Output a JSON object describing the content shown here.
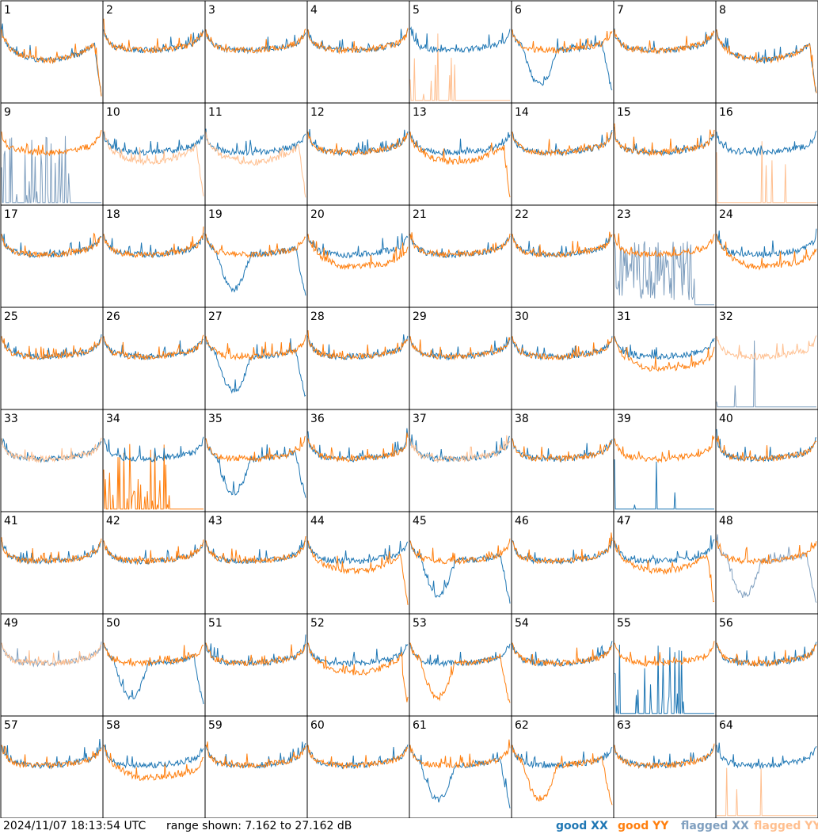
{
  "chart_data": {
    "type": "line",
    "description_of_layout": "8x8 grid of small spectra panels",
    "panel_count": 64,
    "panels": [
      {
        "id": "1",
        "profile": "edge",
        "xx": "good",
        "yy": "good",
        "xx_shape": "sag",
        "yy_shape": "sag"
      },
      {
        "id": "2",
        "profile": "bathtub",
        "xx": "good",
        "yy": "good"
      },
      {
        "id": "3",
        "profile": "bathtub",
        "xx": "good",
        "yy": "good"
      },
      {
        "id": "4",
        "profile": "bathtub",
        "xx": "good",
        "yy": "good"
      },
      {
        "id": "5",
        "profile": "bathtub",
        "xx": "good",
        "yy": "flagged",
        "yy_shape": "spike"
      },
      {
        "id": "6",
        "profile": "bathtub",
        "xx": "good",
        "yy": "good",
        "xx_shape": "dip"
      },
      {
        "id": "7",
        "profile": "bathtub",
        "xx": "good",
        "yy": "good"
      },
      {
        "id": "8",
        "profile": "edge",
        "xx": "good",
        "yy": "good",
        "xx_shape": "sag",
        "yy_shape": "sag"
      },
      {
        "id": "9",
        "profile": "bathtub",
        "xx": "flagged",
        "yy": "good",
        "xx_shape": "spikes"
      },
      {
        "id": "10",
        "profile": "bathtub",
        "xx": "good",
        "yy": "flagged",
        "yy_shape": "sag"
      },
      {
        "id": "11",
        "profile": "bathtub",
        "xx": "good",
        "yy": "flagged",
        "yy_shape": "sag"
      },
      {
        "id": "12",
        "profile": "bathtub",
        "xx": "good",
        "yy": "good"
      },
      {
        "id": "13",
        "profile": "bathtub",
        "xx": "good",
        "yy": "good",
        "yy_shape": "sag"
      },
      {
        "id": "14",
        "profile": "bathtub",
        "xx": "good",
        "yy": "good"
      },
      {
        "id": "15",
        "profile": "bathtub",
        "xx": "good",
        "yy": "good"
      },
      {
        "id": "16",
        "profile": "bathtub",
        "xx": "good",
        "yy": "flagged",
        "yy_shape": "spike"
      },
      {
        "id": "17",
        "profile": "bathtub",
        "xx": "good",
        "yy": "good"
      },
      {
        "id": "18",
        "profile": "bathtub",
        "xx": "good",
        "yy": "good"
      },
      {
        "id": "19",
        "profile": "bathtub",
        "xx": "good",
        "yy": "good",
        "xx_shape": "dip"
      },
      {
        "id": "20",
        "profile": "bathtub",
        "xx": "good",
        "yy": "good",
        "yy_shape": "lower"
      },
      {
        "id": "21",
        "profile": "bathtub",
        "xx": "good",
        "yy": "good"
      },
      {
        "id": "22",
        "profile": "bathtub",
        "xx": "good",
        "yy": "good"
      },
      {
        "id": "23",
        "profile": "bathtub",
        "xx": "flagged",
        "yy": "good",
        "xx_shape": "noise"
      },
      {
        "id": "24",
        "profile": "bathtub",
        "xx": "good",
        "yy": "good",
        "yy_shape": "lower"
      },
      {
        "id": "25",
        "profile": "bathtub",
        "xx": "good",
        "yy": "good"
      },
      {
        "id": "26",
        "profile": "bathtub",
        "xx": "good",
        "yy": "good"
      },
      {
        "id": "27",
        "profile": "bathtub",
        "xx": "good",
        "yy": "good",
        "xx_shape": "dip"
      },
      {
        "id": "28",
        "profile": "bathtub",
        "xx": "good",
        "yy": "good"
      },
      {
        "id": "29",
        "profile": "bathtub",
        "xx": "good",
        "yy": "good"
      },
      {
        "id": "30",
        "profile": "bathtub",
        "xx": "good",
        "yy": "good"
      },
      {
        "id": "31",
        "profile": "bathtub",
        "xx": "good",
        "yy": "good",
        "yy_shape": "lower"
      },
      {
        "id": "32",
        "profile": "bathtub",
        "xx": "flagged",
        "yy": "flagged",
        "xx_shape": "spike"
      },
      {
        "id": "33",
        "profile": "bathtub",
        "xx": "good",
        "yy": "flagged"
      },
      {
        "id": "34",
        "profile": "bathtub",
        "xx": "good",
        "yy": "good",
        "yy_shape": "spikes"
      },
      {
        "id": "35",
        "profile": "bathtub",
        "xx": "good",
        "yy": "good",
        "xx_shape": "dip"
      },
      {
        "id": "36",
        "profile": "bathtub",
        "xx": "good",
        "yy": "good"
      },
      {
        "id": "37",
        "profile": "bathtub",
        "xx": "good",
        "yy": "flagged"
      },
      {
        "id": "38",
        "profile": "bathtub",
        "xx": "good",
        "yy": "good"
      },
      {
        "id": "39",
        "profile": "bathtub",
        "xx": "good",
        "yy": "good",
        "xx_shape": "spike"
      },
      {
        "id": "40",
        "profile": "bathtub",
        "xx": "good",
        "yy": "good"
      },
      {
        "id": "41",
        "profile": "bathtub",
        "xx": "good",
        "yy": "good"
      },
      {
        "id": "42",
        "profile": "bathtub",
        "xx": "good",
        "yy": "good"
      },
      {
        "id": "43",
        "profile": "bathtub",
        "xx": "good",
        "yy": "good"
      },
      {
        "id": "44",
        "profile": "bathtub",
        "xx": "good",
        "yy": "good",
        "yy_shape": "sag"
      },
      {
        "id": "45",
        "profile": "bathtub",
        "xx": "good",
        "yy": "good",
        "xx_shape": "dip"
      },
      {
        "id": "46",
        "profile": "bathtub",
        "xx": "good",
        "yy": "good"
      },
      {
        "id": "47",
        "profile": "bathtub",
        "xx": "good",
        "yy": "good",
        "yy_shape": "sag"
      },
      {
        "id": "48",
        "profile": "bathtub",
        "xx": "flagged",
        "yy": "good",
        "xx_shape": "dip"
      },
      {
        "id": "49",
        "profile": "bathtub",
        "xx": "flagged",
        "yy": "flagged"
      },
      {
        "id": "50",
        "profile": "bathtub",
        "xx": "good",
        "yy": "good",
        "xx_shape": "dip"
      },
      {
        "id": "51",
        "profile": "bathtub",
        "xx": "good",
        "yy": "good"
      },
      {
        "id": "52",
        "profile": "bathtub",
        "xx": "good",
        "yy": "good",
        "yy_shape": "sag"
      },
      {
        "id": "53",
        "profile": "bathtub",
        "xx": "good",
        "yy": "good",
        "yy_shape": "dip"
      },
      {
        "id": "54",
        "profile": "bathtub",
        "xx": "good",
        "yy": "good"
      },
      {
        "id": "55",
        "profile": "bathtub",
        "xx": "good",
        "yy": "good",
        "xx_shape": "spikes"
      },
      {
        "id": "56",
        "profile": "bathtub",
        "xx": "good",
        "yy": "good"
      },
      {
        "id": "57",
        "profile": "bathtub",
        "xx": "good",
        "yy": "good"
      },
      {
        "id": "58",
        "profile": "bathtub",
        "xx": "good",
        "yy": "good",
        "yy_shape": "lower"
      },
      {
        "id": "59",
        "profile": "bathtub",
        "xx": "good",
        "yy": "good"
      },
      {
        "id": "60",
        "profile": "bathtub",
        "xx": "good",
        "yy": "good"
      },
      {
        "id": "61",
        "profile": "bathtub",
        "xx": "good",
        "yy": "good",
        "xx_shape": "dip"
      },
      {
        "id": "62",
        "profile": "bathtub",
        "xx": "good",
        "yy": "good",
        "yy_shape": "dip"
      },
      {
        "id": "63",
        "profile": "bathtub",
        "xx": "good",
        "yy": "good"
      },
      {
        "id": "64",
        "profile": "bathtub",
        "xx": "good",
        "yy": "flagged",
        "yy_shape": "spike"
      }
    ],
    "ylim": [
      7.162,
      27.162
    ],
    "y_unit": "dB",
    "legend_placement": "bottom-right"
  },
  "colors": {
    "good_xx": "#1f77b4",
    "good_yy": "#ff7f0e",
    "flagged_xx": "#7f9fbf",
    "flagged_yy": "#ffbf8f"
  },
  "footer": {
    "timestamp": "2024/11/07 18:13:54 UTC",
    "range_text": "range shown: 7.162 to 27.162 dB",
    "legend_good_xx": "good XX",
    "legend_good_yy": "good YY",
    "legend_flagged_xx": "flagged XX",
    "legend_flagged_yy": "flagged YY"
  }
}
